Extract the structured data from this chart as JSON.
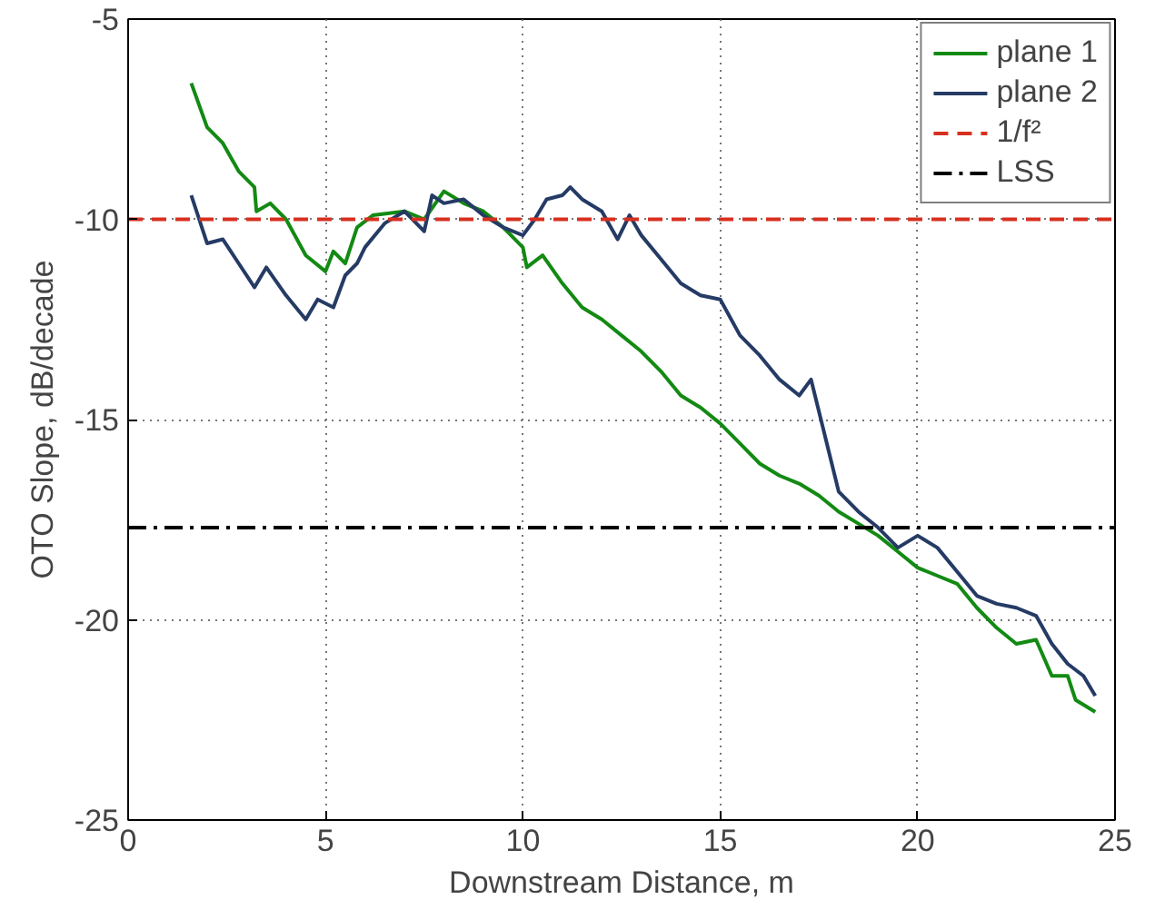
{
  "chart_data": {
    "type": "line",
    "xlabel": "Downstream Distance, m",
    "ylabel": "OTO Slope, dB/decade",
    "xlim": [
      0,
      25
    ],
    "ylim": [
      -25,
      -5
    ],
    "xticks": [
      0,
      5,
      10,
      15,
      20,
      25
    ],
    "yticks": [
      -25,
      -20,
      -15,
      -10,
      -5
    ],
    "grid": true,
    "legend": "top right",
    "series": [
      {
        "name": "plane 1",
        "color": "#138a13",
        "x": [
          1.6,
          2.0,
          2.4,
          2.8,
          3.2,
          3.25,
          3.6,
          4.0,
          4.5,
          5.0,
          5.2,
          5.5,
          5.8,
          6.2,
          7.0,
          7.5,
          8.0,
          8.5,
          9.0,
          9.5,
          10.0,
          10.1,
          10.5,
          11.0,
          11.5,
          12.0,
          12.5,
          13.0,
          13.5,
          14.0,
          14.5,
          15.0,
          15.5,
          16.0,
          16.5,
          17.0,
          17.5,
          18.0,
          18.5,
          19.0,
          19.5,
          20.0,
          20.5,
          21.0,
          21.5,
          22.0,
          22.5,
          23.0,
          23.4,
          23.8,
          24.0,
          24.5
        ],
        "values": [
          -6.6,
          -7.7,
          -8.1,
          -8.8,
          -9.2,
          -9.8,
          -9.6,
          -10.0,
          -10.9,
          -11.3,
          -10.8,
          -11.1,
          -10.2,
          -9.9,
          -9.8,
          -10.0,
          -9.3,
          -9.6,
          -9.8,
          -10.2,
          -10.7,
          -11.2,
          -10.9,
          -11.6,
          -12.2,
          -12.5,
          -12.9,
          -13.3,
          -13.8,
          -14.4,
          -14.7,
          -15.1,
          -15.6,
          -16.1,
          -16.4,
          -16.6,
          -16.9,
          -17.3,
          -17.6,
          -17.9,
          -18.3,
          -18.7,
          -18.9,
          -19.1,
          -19.7,
          -20.2,
          -20.6,
          -20.5,
          -21.4,
          -21.4,
          -22.0,
          -22.3
        ]
      },
      {
        "name": "plane 2",
        "color": "#253b65",
        "x": [
          1.6,
          1.8,
          2.0,
          2.4,
          2.8,
          3.2,
          3.5,
          4.0,
          4.5,
          4.8,
          5.2,
          5.5,
          5.8,
          6.0,
          6.5,
          7.0,
          7.5,
          7.7,
          8.0,
          8.5,
          9.0,
          9.5,
          10.0,
          10.3,
          10.6,
          11.0,
          11.2,
          11.5,
          12.0,
          12.4,
          12.7,
          13.0,
          13.5,
          14.0,
          14.5,
          15.0,
          15.5,
          16.0,
          16.5,
          17.0,
          17.3,
          17.6,
          18.0,
          18.5,
          19.0,
          19.5,
          20.0,
          20.5,
          21.0,
          21.5,
          22.0,
          22.5,
          23.0,
          23.4,
          23.8,
          24.2,
          24.5
        ],
        "values": [
          -9.4,
          -10.0,
          -10.6,
          -10.5,
          -11.1,
          -11.7,
          -11.2,
          -11.9,
          -12.5,
          -12.0,
          -12.2,
          -11.4,
          -11.1,
          -10.7,
          -10.1,
          -9.8,
          -10.3,
          -9.4,
          -9.6,
          -9.5,
          -9.9,
          -10.2,
          -10.4,
          -10.0,
          -9.5,
          -9.4,
          -9.2,
          -9.5,
          -9.8,
          -10.5,
          -9.9,
          -10.4,
          -11.0,
          -11.6,
          -11.9,
          -12.0,
          -12.9,
          -13.4,
          -14.0,
          -14.4,
          -14.0,
          -15.2,
          -16.8,
          -17.3,
          -17.7,
          -18.2,
          -17.9,
          -18.2,
          -18.8,
          -19.4,
          -19.6,
          -19.7,
          -19.9,
          -20.6,
          -21.1,
          -21.4,
          -21.9
        ]
      }
    ],
    "ref_lines": [
      {
        "axis": "y",
        "value": -10,
        "label": "1/f²",
        "color": "#d7301f",
        "line_style": "dashed"
      },
      {
        "axis": "y",
        "value": -17.7,
        "label": "LSS",
        "color": "#000000",
        "line_style": "dashdot"
      }
    ]
  }
}
